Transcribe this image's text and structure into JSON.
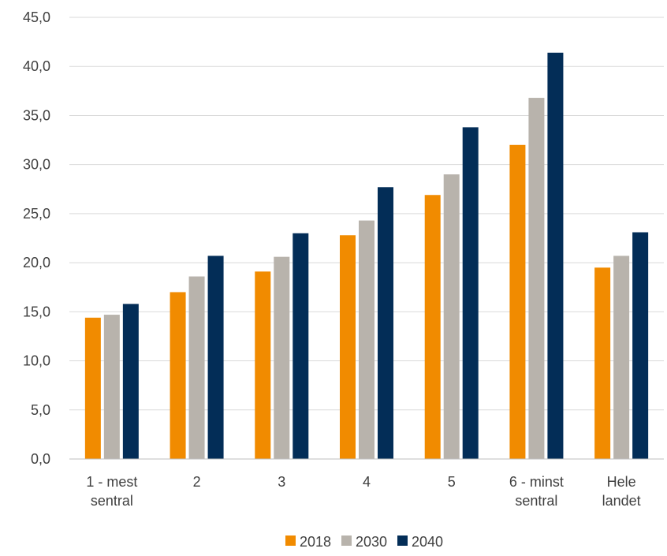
{
  "chart_data": {
    "type": "bar",
    "categories": [
      [
        "1 - mest",
        "sentral"
      ],
      [
        "2"
      ],
      [
        "3"
      ],
      [
        "4"
      ],
      [
        "5"
      ],
      [
        "6 - minst",
        "sentral"
      ],
      [
        "Hele",
        "landet"
      ]
    ],
    "series": [
      {
        "name": "2018",
        "color": "#f18b00",
        "values": [
          14.4,
          17.0,
          19.1,
          22.8,
          26.9,
          32.0,
          19.5
        ]
      },
      {
        "name": "2030",
        "color": "#b8b3ac",
        "values": [
          14.7,
          18.6,
          20.6,
          24.3,
          29.0,
          36.8,
          20.7
        ]
      },
      {
        "name": "2040",
        "color": "#032d57",
        "values": [
          15.8,
          20.7,
          23.0,
          27.7,
          33.8,
          41.4,
          23.1
        ]
      }
    ],
    "ylim": [
      0,
      45
    ],
    "yticks": [
      "0,0",
      "5,0",
      "10,0",
      "15,0",
      "20,0",
      "25,0",
      "30,0",
      "35,0",
      "40,0",
      "45,0"
    ],
    "ytick_values": [
      0,
      5,
      10,
      15,
      20,
      25,
      30,
      35,
      40,
      45
    ],
    "grid": true,
    "legend_position": "bottom-center"
  }
}
